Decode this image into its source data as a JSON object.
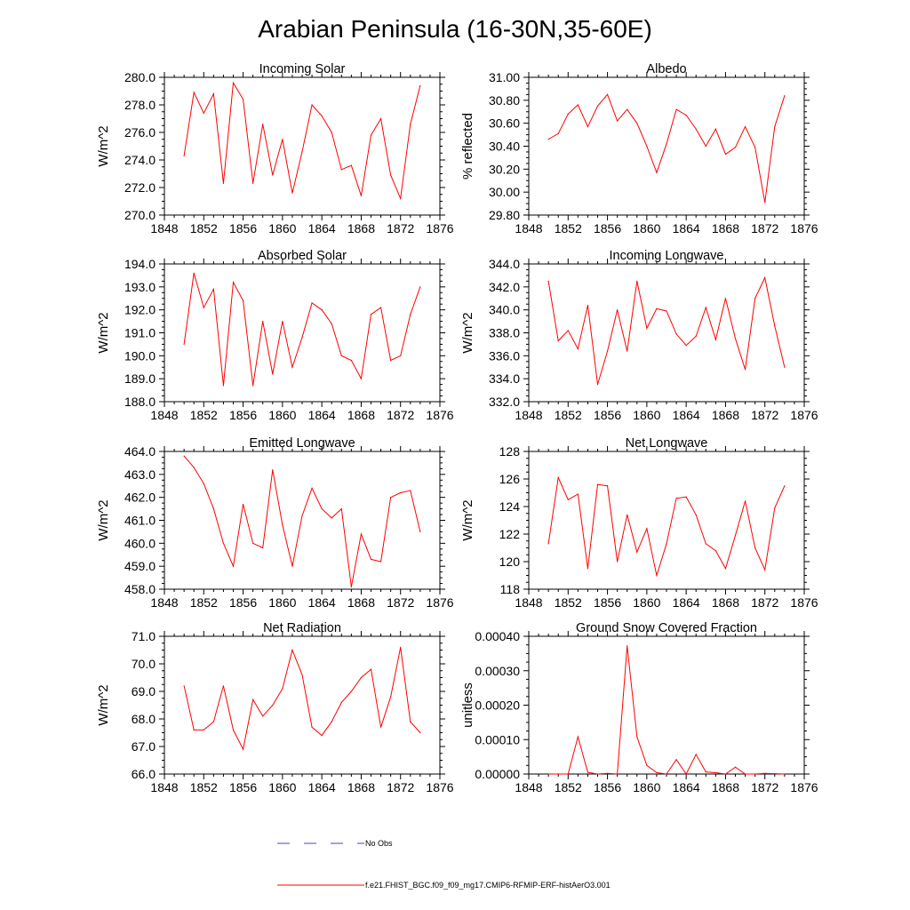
{
  "title": "Arabian Peninsula (16-30N,35-60E)",
  "series_color": "#ff0000",
  "obs_color": "#4a4aa8",
  "legend": {
    "obs_label": "No Obs",
    "model_label": "f.e21.FHIST_BGC.f09_f09_mg17.CMIP6-RFMIP-ERF-histAerO3.001"
  },
  "chart_data": [
    {
      "type": "line",
      "title": "Incoming Solar",
      "xlabel": "",
      "ylabel": "W/m^2",
      "xlim": [
        1848,
        1876
      ],
      "ylim": [
        270,
        280
      ],
      "xticks": [
        1848,
        1852,
        1856,
        1860,
        1864,
        1868,
        1872,
        1876
      ],
      "yticks": [
        270,
        272,
        274,
        276,
        278,
        280
      ],
      "ytick_labels": [
        "270.0",
        "272.0",
        "274.0",
        "276.0",
        "278.0",
        "280.0"
      ],
      "ytick_minor_per_major": 4,
      "x": [
        1850,
        1851,
        1852,
        1853,
        1854,
        1855,
        1856,
        1857,
        1858,
        1859,
        1860,
        1861,
        1862,
        1863,
        1864,
        1865,
        1866,
        1867,
        1868,
        1869,
        1870,
        1871,
        1872,
        1873,
        1874
      ],
      "values": [
        274.3,
        278.9,
        277.4,
        278.8,
        272.3,
        279.6,
        278.4,
        272.3,
        276.6,
        272.9,
        275.5,
        271.6,
        274.6,
        278.0,
        277.2,
        276.0,
        273.3,
        273.6,
        271.4,
        275.8,
        277.0,
        272.9,
        271.2,
        276.6,
        279.4
      ]
    },
    {
      "type": "line",
      "title": "Albedo",
      "xlabel": "",
      "ylabel": "% reflected",
      "xlim": [
        1848,
        1876
      ],
      "ylim": [
        29.8,
        31.0
      ],
      "xticks": [
        1848,
        1852,
        1856,
        1860,
        1864,
        1868,
        1872,
        1876
      ],
      "yticks": [
        29.8,
        30.0,
        30.2,
        30.4,
        30.6,
        30.8,
        31.0
      ],
      "ytick_labels": [
        "29.80",
        "30.00",
        "30.20",
        "30.40",
        "30.60",
        "30.80",
        "31.00"
      ],
      "ytick_minor_per_major": 4,
      "x": [
        1850,
        1851,
        1852,
        1853,
        1854,
        1855,
        1856,
        1857,
        1858,
        1859,
        1860,
        1861,
        1862,
        1863,
        1864,
        1865,
        1866,
        1867,
        1868,
        1869,
        1870,
        1871,
        1872,
        1873,
        1874
      ],
      "values": [
        30.46,
        30.51,
        30.68,
        30.76,
        30.57,
        30.75,
        30.85,
        30.62,
        30.72,
        30.6,
        30.4,
        30.17,
        30.42,
        30.72,
        30.67,
        30.55,
        30.4,
        30.55,
        30.33,
        30.39,
        30.57,
        30.39,
        29.91,
        30.57,
        30.84
      ]
    },
    {
      "type": "line",
      "title": "Absorbed Solar",
      "xlabel": "",
      "ylabel": "W/m^2",
      "xlim": [
        1848,
        1876
      ],
      "ylim": [
        188,
        194
      ],
      "xticks": [
        1848,
        1852,
        1856,
        1860,
        1864,
        1868,
        1872,
        1876
      ],
      "yticks": [
        188,
        189,
        190,
        191,
        192,
        193,
        194
      ],
      "ytick_labels": [
        "188.0",
        "189.0",
        "190.0",
        "191.0",
        "192.0",
        "193.0",
        "194.0"
      ],
      "ytick_minor_per_major": 4,
      "x": [
        1850,
        1851,
        1852,
        1853,
        1854,
        1855,
        1856,
        1857,
        1858,
        1859,
        1860,
        1861,
        1862,
        1863,
        1864,
        1865,
        1866,
        1867,
        1868,
        1869,
        1870,
        1871,
        1872,
        1873,
        1874
      ],
      "values": [
        190.5,
        193.6,
        192.1,
        192.9,
        188.7,
        193.2,
        192.4,
        188.7,
        191.5,
        189.2,
        191.5,
        189.5,
        190.8,
        192.3,
        192.0,
        191.4,
        190.0,
        189.8,
        189.0,
        191.8,
        192.1,
        189.8,
        190.0,
        191.8,
        193.0
      ]
    },
    {
      "type": "line",
      "title": "Incoming Longwave",
      "xlabel": "",
      "ylabel": "W/m^2",
      "xlim": [
        1848,
        1876
      ],
      "ylim": [
        332,
        344
      ],
      "xticks": [
        1848,
        1852,
        1856,
        1860,
        1864,
        1868,
        1872,
        1876
      ],
      "yticks": [
        332,
        334,
        336,
        338,
        340,
        342,
        344
      ],
      "ytick_labels": [
        "332.0",
        "334.0",
        "336.0",
        "338.0",
        "340.0",
        "342.0",
        "344.0"
      ],
      "ytick_minor_per_major": 4,
      "x": [
        1850,
        1851,
        1852,
        1853,
        1854,
        1855,
        1856,
        1857,
        1858,
        1859,
        1860,
        1861,
        1862,
        1863,
        1864,
        1865,
        1866,
        1867,
        1868,
        1869,
        1870,
        1871,
        1872,
        1873,
        1874
      ],
      "values": [
        342.5,
        337.3,
        338.2,
        336.6,
        340.4,
        333.5,
        336.4,
        340.0,
        336.4,
        342.5,
        338.4,
        340.1,
        339.9,
        337.9,
        336.9,
        337.7,
        340.2,
        337.4,
        341.0,
        337.5,
        334.8,
        341.0,
        342.8,
        338.6,
        335.0
      ]
    },
    {
      "type": "line",
      "title": "Emitted Longwave",
      "xlabel": "",
      "ylabel": "W/m^2",
      "xlim": [
        1848,
        1876
      ],
      "ylim": [
        458,
        464
      ],
      "xticks": [
        1848,
        1852,
        1856,
        1860,
        1864,
        1868,
        1872,
        1876
      ],
      "yticks": [
        458,
        459,
        460,
        461,
        462,
        463,
        464
      ],
      "ytick_labels": [
        "458.0",
        "459.0",
        "460.0",
        "461.0",
        "462.0",
        "463.0",
        "464.0"
      ],
      "ytick_minor_per_major": 4,
      "x": [
        1850,
        1851,
        1852,
        1853,
        1854,
        1855,
        1856,
        1857,
        1858,
        1859,
        1860,
        1861,
        1862,
        1863,
        1864,
        1865,
        1866,
        1867,
        1868,
        1869,
        1870,
        1871,
        1872,
        1873,
        1874
      ],
      "values": [
        463.8,
        463.3,
        462.6,
        461.5,
        460.0,
        459.0,
        461.7,
        460.0,
        459.8,
        463.2,
        460.8,
        459.0,
        461.2,
        462.4,
        461.5,
        461.1,
        461.5,
        458.1,
        460.4,
        459.3,
        459.2,
        462.0,
        462.2,
        462.3,
        460.5
      ]
    },
    {
      "type": "line",
      "title": "Net Longwave",
      "xlabel": "",
      "ylabel": "W/m^2",
      "xlim": [
        1848,
        1876
      ],
      "ylim": [
        118,
        128
      ],
      "xticks": [
        1848,
        1852,
        1856,
        1860,
        1864,
        1868,
        1872,
        1876
      ],
      "yticks": [
        118,
        120,
        122,
        124,
        126,
        128
      ],
      "ytick_labels": [
        "118",
        "120",
        "122",
        "124",
        "126",
        "128"
      ],
      "ytick_minor_per_major": 4,
      "x": [
        1850,
        1851,
        1852,
        1853,
        1854,
        1855,
        1856,
        1857,
        1858,
        1859,
        1860,
        1861,
        1862,
        1863,
        1864,
        1865,
        1866,
        1867,
        1868,
        1869,
        1870,
        1871,
        1872,
        1873,
        1874
      ],
      "values": [
        121.3,
        126.1,
        124.5,
        124.9,
        119.5,
        125.6,
        125.5,
        120.0,
        123.4,
        120.7,
        122.4,
        119.0,
        121.3,
        124.6,
        124.7,
        123.4,
        121.3,
        120.8,
        119.5,
        121.9,
        124.4,
        121.0,
        119.4,
        123.9,
        125.5
      ]
    },
    {
      "type": "line",
      "title": "Net Radiation",
      "xlabel": "",
      "ylabel": "W/m^2",
      "xlim": [
        1848,
        1876
      ],
      "ylim": [
        66,
        71
      ],
      "xticks": [
        1848,
        1852,
        1856,
        1860,
        1864,
        1868,
        1872,
        1876
      ],
      "yticks": [
        66,
        67,
        68,
        69,
        70,
        71
      ],
      "ytick_labels": [
        "66.0",
        "67.0",
        "68.0",
        "69.0",
        "70.0",
        "71.0"
      ],
      "ytick_minor_per_major": 4,
      "x": [
        1850,
        1851,
        1852,
        1853,
        1854,
        1855,
        1856,
        1857,
        1858,
        1859,
        1860,
        1861,
        1862,
        1863,
        1864,
        1865,
        1866,
        1867,
        1868,
        1869,
        1870,
        1871,
        1872,
        1873,
        1874
      ],
      "values": [
        69.2,
        67.6,
        67.6,
        67.9,
        69.2,
        67.6,
        66.9,
        68.7,
        68.1,
        68.5,
        69.1,
        70.5,
        69.6,
        67.7,
        67.4,
        67.9,
        68.6,
        69.0,
        69.5,
        69.8,
        67.7,
        68.8,
        70.6,
        67.9,
        67.5
      ]
    },
    {
      "type": "line",
      "title": "Ground Snow Covered Fraction",
      "xlabel": "",
      "ylabel": "unitless",
      "xlim": [
        1848,
        1876
      ],
      "ylim": [
        0,
        0.0004
      ],
      "xticks": [
        1848,
        1852,
        1856,
        1860,
        1864,
        1868,
        1872,
        1876
      ],
      "yticks": [
        0,
        0.0001,
        0.0002,
        0.0003,
        0.0004
      ],
      "ytick_labels": [
        "0.00000",
        "0.00010",
        "0.00020",
        "0.00030",
        "0.00040"
      ],
      "ytick_minor_per_major": 4,
      "x": [
        1850,
        1851,
        1852,
        1853,
        1854,
        1855,
        1856,
        1857,
        1858,
        1859,
        1860,
        1861,
        1862,
        1863,
        1864,
        1865,
        1866,
        1867,
        1868,
        1869,
        1870,
        1871,
        1872,
        1873,
        1874
      ],
      "values": [
        0.0,
        0.0,
        0.0,
        0.000108,
        5e-06,
        0.0,
        2e-06,
        0.0,
        0.000372,
        0.000108,
        2.5e-05,
        4e-06,
        0.0,
        4.2e-05,
        0.0,
        5.7e-05,
        6e-06,
        4e-06,
        0.0,
        2e-05,
        0.0,
        0.0,
        2e-06,
        1e-06,
        0.0
      ]
    }
  ]
}
